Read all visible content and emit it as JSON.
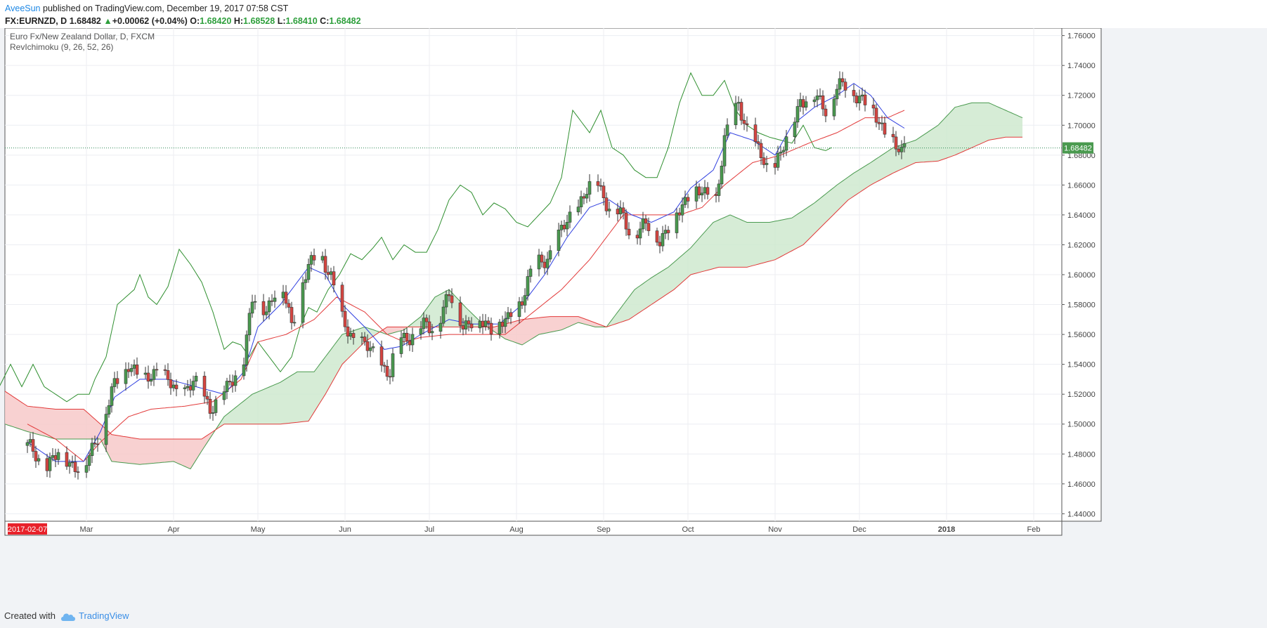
{
  "header": {
    "author": "AveeSun",
    "published": "published on TradingView.com, December 19, 2017 07:58 CST",
    "symbol": "FX:EURNZD, D",
    "last": "1.68482",
    "change_arrow": "▲",
    "change": "+0.00062 (+0.04%)",
    "o_label": "O:",
    "o": "1.68420",
    "h_label": "H:",
    "h": "1.68528",
    "l_label": "L:",
    "l": "1.68410",
    "c_label": "C:",
    "c": "1.68482"
  },
  "legend": {
    "title": "Euro Fx/New Zealand Dollar, D, FXCM",
    "indicator": "RevIchimoku (9, 26, 52, 26)"
  },
  "footer": {
    "created_with": "Created with",
    "brand": "TradingView"
  },
  "colors": {
    "up": "#4a9a4f",
    "down": "#d64541",
    "tenkan": "#2f3fe0",
    "kijun": "#e23a3a",
    "chikou": "#2f8f2f",
    "cloud_bull": "#cfe9cf",
    "cloud_bear": "#f7c9c9"
  },
  "chart_data": {
    "type": "candlestick",
    "title": "Euro Fx/New Zealand Dollar, D, FXCM",
    "ylim": [
      1.435,
      1.765
    ],
    "y_ticks": [
      "1.76000",
      "1.74000",
      "1.72000",
      "1.70000",
      "1.68000",
      "1.66000",
      "1.64000",
      "1.62000",
      "1.60000",
      "1.58000",
      "1.56000",
      "1.54000",
      "1.52000",
      "1.50000",
      "1.48000",
      "1.46000",
      "1.44000"
    ],
    "x_ticks": [
      {
        "label": "Mar",
        "day": 21
      },
      {
        "label": "Apr",
        "day": 52
      },
      {
        "label": "May",
        "day": 82
      },
      {
        "label": "Jun",
        "day": 113
      },
      {
        "label": "Jul",
        "day": 143
      },
      {
        "label": "Aug",
        "day": 174
      },
      {
        "label": "Sep",
        "day": 205
      },
      {
        "label": "Oct",
        "day": 235
      },
      {
        "label": "Nov",
        "day": 266
      },
      {
        "label": "Dec",
        "day": 296
      },
      {
        "label": "2018",
        "day": 327
      },
      {
        "label": "Feb",
        "day": 358
      }
    ],
    "start_label": "2017-02-07",
    "x_range_days": [
      -8,
      368
    ],
    "last_price_label": "1.68482",
    "last_price": 1.68482,
    "close_anchors": [
      [
        0,
        1.485
      ],
      [
        6,
        1.472
      ],
      [
        12,
        1.48
      ],
      [
        20,
        1.468
      ],
      [
        26,
        1.498
      ],
      [
        31,
        1.525
      ],
      [
        36,
        1.542
      ],
      [
        41,
        1.527
      ],
      [
        46,
        1.538
      ],
      [
        53,
        1.52
      ],
      [
        59,
        1.528
      ],
      [
        65,
        1.512
      ],
      [
        71,
        1.522
      ],
      [
        77,
        1.545
      ],
      [
        80,
        1.582
      ],
      [
        85,
        1.578
      ],
      [
        90,
        1.595
      ],
      [
        94,
        1.568
      ],
      [
        98,
        1.595
      ],
      [
        104,
        1.618
      ],
      [
        108,
        1.598
      ],
      [
        112,
        1.57
      ],
      [
        117,
        1.555
      ],
      [
        123,
        1.548
      ],
      [
        129,
        1.532
      ],
      [
        132,
        1.558
      ],
      [
        137,
        1.56
      ],
      [
        141,
        1.565
      ],
      [
        145,
        1.565
      ],
      [
        150,
        1.585
      ],
      [
        155,
        1.568
      ],
      [
        160,
        1.568
      ],
      [
        166,
        1.566
      ],
      [
        171,
        1.568
      ],
      [
        176,
        1.585
      ],
      [
        180,
        1.605
      ],
      [
        185,
        1.612
      ],
      [
        190,
        1.628
      ],
      [
        194,
        1.642
      ],
      [
        199,
        1.655
      ],
      [
        203,
        1.662
      ],
      [
        207,
        1.645
      ],
      [
        211,
        1.64
      ],
      [
        215,
        1.628
      ],
      [
        220,
        1.632
      ],
      [
        225,
        1.625
      ],
      [
        230,
        1.635
      ],
      [
        236,
        1.658
      ],
      [
        241,
        1.652
      ],
      [
        245,
        1.652
      ],
      [
        248,
        1.69
      ],
      [
        253,
        1.715
      ],
      [
        258,
        1.688
      ],
      [
        263,
        1.672
      ],
      [
        266,
        1.675
      ],
      [
        270,
        1.688
      ],
      [
        275,
        1.718
      ],
      [
        280,
        1.718
      ],
      [
        284,
        1.712
      ],
      [
        288,
        1.725
      ],
      [
        293,
        1.725
      ],
      [
        297,
        1.718
      ],
      [
        302,
        1.705
      ],
      [
        306,
        1.695
      ],
      [
        309,
        1.684
      ],
      [
        311,
        1.68
      ],
      [
        312,
        1.685
      ]
    ],
    "tenkan_anchors": [
      [
        0,
        1.488
      ],
      [
        10,
        1.475
      ],
      [
        20,
        1.475
      ],
      [
        26,
        1.495
      ],
      [
        31,
        1.518
      ],
      [
        40,
        1.53
      ],
      [
        50,
        1.53
      ],
      [
        60,
        1.525
      ],
      [
        70,
        1.52
      ],
      [
        77,
        1.535
      ],
      [
        82,
        1.565
      ],
      [
        90,
        1.58
      ],
      [
        100,
        1.605
      ],
      [
        106,
        1.6
      ],
      [
        112,
        1.58
      ],
      [
        120,
        1.565
      ],
      [
        127,
        1.55
      ],
      [
        133,
        1.552
      ],
      [
        140,
        1.56
      ],
      [
        150,
        1.57
      ],
      [
        158,
        1.567
      ],
      [
        168,
        1.567
      ],
      [
        176,
        1.58
      ],
      [
        184,
        1.6
      ],
      [
        192,
        1.625
      ],
      [
        200,
        1.645
      ],
      [
        207,
        1.65
      ],
      [
        215,
        1.64
      ],
      [
        222,
        1.635
      ],
      [
        230,
        1.642
      ],
      [
        236,
        1.658
      ],
      [
        244,
        1.67
      ],
      [
        250,
        1.695
      ],
      [
        258,
        1.69
      ],
      [
        266,
        1.68
      ],
      [
        272,
        1.7
      ],
      [
        280,
        1.712
      ],
      [
        288,
        1.72
      ],
      [
        294,
        1.728
      ],
      [
        300,
        1.72
      ],
      [
        306,
        1.705
      ],
      [
        312,
        1.698
      ]
    ],
    "kijun_anchors": [
      [
        0,
        1.5
      ],
      [
        10,
        1.49
      ],
      [
        20,
        1.475
      ],
      [
        26,
        1.488
      ],
      [
        36,
        1.505
      ],
      [
        44,
        1.51
      ],
      [
        56,
        1.512
      ],
      [
        66,
        1.515
      ],
      [
        76,
        1.53
      ],
      [
        82,
        1.555
      ],
      [
        92,
        1.56
      ],
      [
        102,
        1.57
      ],
      [
        110,
        1.585
      ],
      [
        120,
        1.575
      ],
      [
        128,
        1.56
      ],
      [
        134,
        1.555
      ],
      [
        140,
        1.558
      ],
      [
        150,
        1.56
      ],
      [
        160,
        1.56
      ],
      [
        170,
        1.56
      ],
      [
        180,
        1.575
      ],
      [
        190,
        1.59
      ],
      [
        200,
        1.61
      ],
      [
        206,
        1.625
      ],
      [
        212,
        1.64
      ],
      [
        222,
        1.64
      ],
      [
        232,
        1.64
      ],
      [
        240,
        1.645
      ],
      [
        248,
        1.66
      ],
      [
        258,
        1.675
      ],
      [
        268,
        1.68
      ],
      [
        278,
        1.688
      ],
      [
        288,
        1.695
      ],
      [
        298,
        1.705
      ],
      [
        306,
        1.705
      ],
      [
        312,
        1.71
      ]
    ],
    "span_a_anchors": [
      [
        -8,
        1.5
      ],
      [
        0,
        1.495
      ],
      [
        10,
        1.49
      ],
      [
        20,
        1.49
      ],
      [
        26,
        1.49
      ],
      [
        30,
        1.475
      ],
      [
        40,
        1.473
      ],
      [
        52,
        1.475
      ],
      [
        58,
        1.47
      ],
      [
        62,
        1.482
      ],
      [
        70,
        1.505
      ],
      [
        80,
        1.52
      ],
      [
        90,
        1.528
      ],
      [
        96,
        1.535
      ],
      [
        102,
        1.535
      ],
      [
        106,
        1.545
      ],
      [
        112,
        1.56
      ],
      [
        120,
        1.565
      ],
      [
        128,
        1.56
      ],
      [
        134,
        1.563
      ],
      [
        140,
        1.572
      ],
      [
        145,
        1.585
      ],
      [
        150,
        1.59
      ],
      [
        156,
        1.578
      ],
      [
        162,
        1.567
      ],
      [
        170,
        1.557
      ],
      [
        176,
        1.553
      ],
      [
        182,
        1.56
      ],
      [
        190,
        1.563
      ],
      [
        196,
        1.568
      ],
      [
        202,
        1.565
      ],
      [
        206,
        1.565
      ],
      [
        210,
        1.575
      ],
      [
        216,
        1.59
      ],
      [
        222,
        1.598
      ],
      [
        228,
        1.605
      ],
      [
        236,
        1.618
      ],
      [
        244,
        1.635
      ],
      [
        250,
        1.64
      ],
      [
        256,
        1.635
      ],
      [
        264,
        1.635
      ],
      [
        272,
        1.638
      ],
      [
        280,
        1.648
      ],
      [
        288,
        1.66
      ],
      [
        294,
        1.668
      ],
      [
        300,
        1.675
      ],
      [
        308,
        1.685
      ],
      [
        316,
        1.69
      ],
      [
        324,
        1.7
      ],
      [
        330,
        1.712
      ],
      [
        336,
        1.715
      ],
      [
        342,
        1.715
      ],
      [
        348,
        1.71
      ],
      [
        354,
        1.705
      ]
    ],
    "span_b_anchors": [
      [
        -8,
        1.522
      ],
      [
        0,
        1.512
      ],
      [
        10,
        1.51
      ],
      [
        20,
        1.51
      ],
      [
        26,
        1.5
      ],
      [
        30,
        1.493
      ],
      [
        40,
        1.49
      ],
      [
        52,
        1.49
      ],
      [
        62,
        1.49
      ],
      [
        70,
        1.5
      ],
      [
        80,
        1.5
      ],
      [
        90,
        1.5
      ],
      [
        100,
        1.502
      ],
      [
        106,
        1.52
      ],
      [
        112,
        1.54
      ],
      [
        120,
        1.555
      ],
      [
        128,
        1.565
      ],
      [
        134,
        1.565
      ],
      [
        145,
        1.565
      ],
      [
        156,
        1.565
      ],
      [
        166,
        1.565
      ],
      [
        176,
        1.57
      ],
      [
        186,
        1.572
      ],
      [
        196,
        1.572
      ],
      [
        206,
        1.565
      ],
      [
        214,
        1.57
      ],
      [
        222,
        1.58
      ],
      [
        230,
        1.59
      ],
      [
        236,
        1.6
      ],
      [
        246,
        1.605
      ],
      [
        256,
        1.605
      ],
      [
        266,
        1.61
      ],
      [
        276,
        1.62
      ],
      [
        284,
        1.635
      ],
      [
        292,
        1.65
      ],
      [
        300,
        1.66
      ],
      [
        308,
        1.668
      ],
      [
        316,
        1.675
      ],
      [
        324,
        1.676
      ],
      [
        330,
        1.68
      ],
      [
        336,
        1.685
      ],
      [
        342,
        1.69
      ],
      [
        348,
        1.692
      ],
      [
        354,
        1.692
      ]
    ],
    "chikou_anchors": [
      [
        -26,
        1.48
      ],
      [
        -22,
        1.5
      ],
      [
        -18,
        1.53
      ],
      [
        -14,
        1.54
      ],
      [
        -10,
        1.525
      ],
      [
        -6,
        1.54
      ],
      [
        -2,
        1.525
      ],
      [
        2,
        1.54
      ],
      [
        6,
        1.525
      ],
      [
        10,
        1.52
      ],
      [
        14,
        1.515
      ],
      [
        18,
        1.52
      ],
      [
        22,
        1.52
      ],
      [
        24,
        1.53
      ],
      [
        28,
        1.545
      ],
      [
        32,
        1.58
      ],
      [
        35,
        1.585
      ],
      [
        38,
        1.59
      ],
      [
        40,
        1.6
      ],
      [
        43,
        1.585
      ],
      [
        46,
        1.58
      ],
      [
        50,
        1.592
      ],
      [
        54,
        1.617
      ],
      [
        58,
        1.607
      ],
      [
        62,
        1.595
      ],
      [
        66,
        1.575
      ],
      [
        70,
        1.55
      ],
      [
        73,
        1.555
      ],
      [
        76,
        1.553
      ],
      [
        79,
        1.545
      ],
      [
        82,
        1.555
      ],
      [
        86,
        1.545
      ],
      [
        90,
        1.535
      ],
      [
        94,
        1.545
      ],
      [
        97,
        1.565
      ],
      [
        100,
        1.578
      ],
      [
        103,
        1.575
      ],
      [
        107,
        1.59
      ],
      [
        111,
        1.6
      ],
      [
        115,
        1.614
      ],
      [
        119,
        1.61
      ],
      [
        123,
        1.618
      ],
      [
        126,
        1.625
      ],
      [
        130,
        1.61
      ],
      [
        134,
        1.62
      ],
      [
        138,
        1.615
      ],
      [
        142,
        1.615
      ],
      [
        146,
        1.63
      ],
      [
        150,
        1.65
      ],
      [
        154,
        1.66
      ],
      [
        158,
        1.655
      ],
      [
        162,
        1.64
      ],
      [
        166,
        1.648
      ],
      [
        170,
        1.644
      ],
      [
        174,
        1.635
      ],
      [
        178,
        1.632
      ],
      [
        182,
        1.64
      ],
      [
        186,
        1.648
      ],
      [
        190,
        1.665
      ],
      [
        194,
        1.71
      ],
      [
        196,
        1.705
      ],
      [
        200,
        1.695
      ],
      [
        204,
        1.71
      ],
      [
        208,
        1.685
      ],
      [
        212,
        1.68
      ],
      [
        216,
        1.67
      ],
      [
        220,
        1.665
      ],
      [
        224,
        1.665
      ],
      [
        228,
        1.685
      ],
      [
        232,
        1.715
      ],
      [
        236,
        1.735
      ],
      [
        240,
        1.72
      ],
      [
        244,
        1.72
      ],
      [
        248,
        1.73
      ],
      [
        252,
        1.71
      ],
      [
        256,
        1.7
      ],
      [
        260,
        1.695
      ],
      [
        264,
        1.692
      ],
      [
        268,
        1.69
      ],
      [
        272,
        1.688
      ],
      [
        276,
        1.7
      ],
      [
        280,
        1.685
      ],
      [
        284,
        1.683
      ],
      [
        286,
        1.685
      ]
    ]
  }
}
